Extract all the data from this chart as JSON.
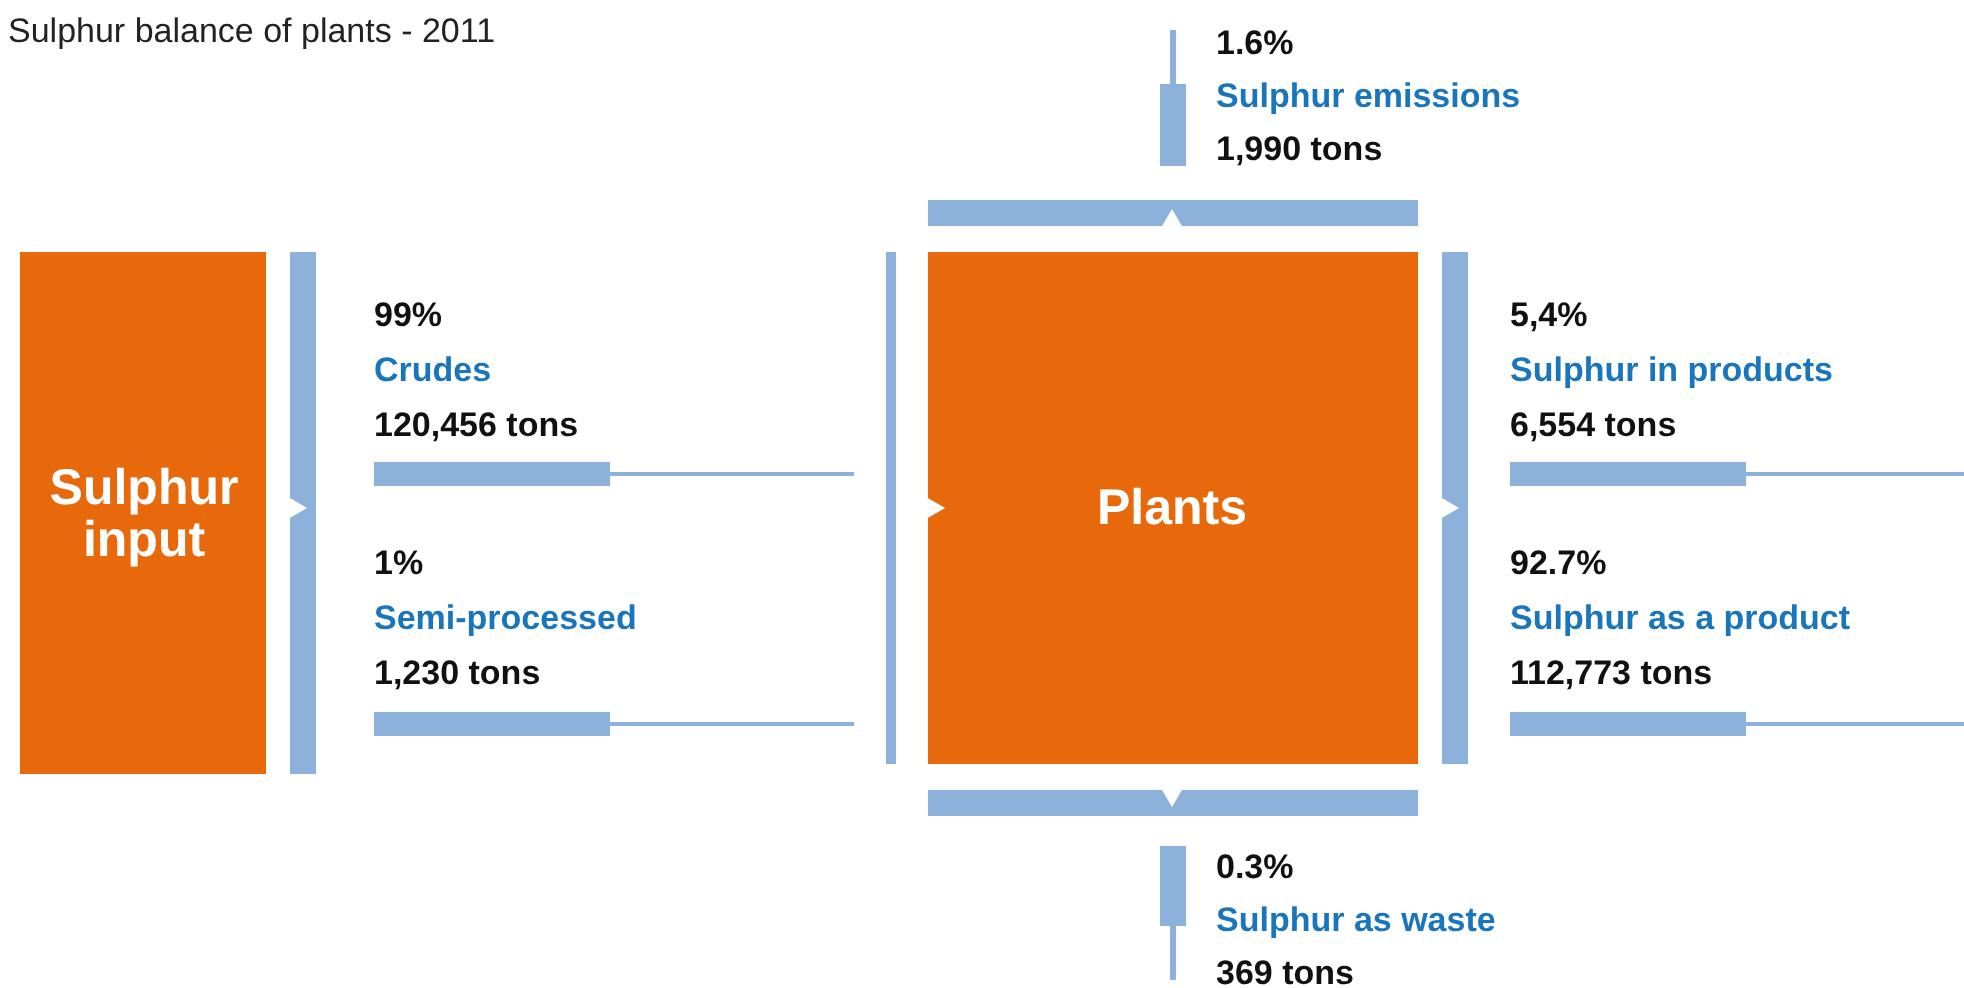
{
  "chart_data": {
    "type": "other",
    "title": "Sulphur balance of plants - 2011",
    "categories": [
      "Crudes",
      "Semi-processed",
      "Sulphur in products",
      "Sulphur as a product",
      "Sulphur emissions",
      "Sulphur as waste"
    ],
    "series": [
      {
        "color": "#111111",
        "values": [
          99,
          1,
          5.4,
          92.7,
          1.6,
          0.3
        ],
        "value_labels": [
          "99%",
          "1%",
          "5,4%",
          "92.7%",
          "1.6%",
          "0.3%"
        ]
      },
      {
        "color": "#111111",
        "values": [
          120456,
          1230,
          6554,
          112773,
          1990,
          369
        ],
        "value_labels": [
          "120,456 tons",
          "1,230 tons",
          "6,554 tons",
          "112,773 tons",
          "1,990 tons",
          "369 tons"
        ]
      }
    ],
    "colors": [
      "#8cb2db",
      "#8cb2db",
      "#8cb2db",
      "#8cb2db",
      "#8cb2db",
      "#8cb2db"
    ],
    "annotations": [
      "Sulphur input",
      "Plants"
    ]
  }
}
